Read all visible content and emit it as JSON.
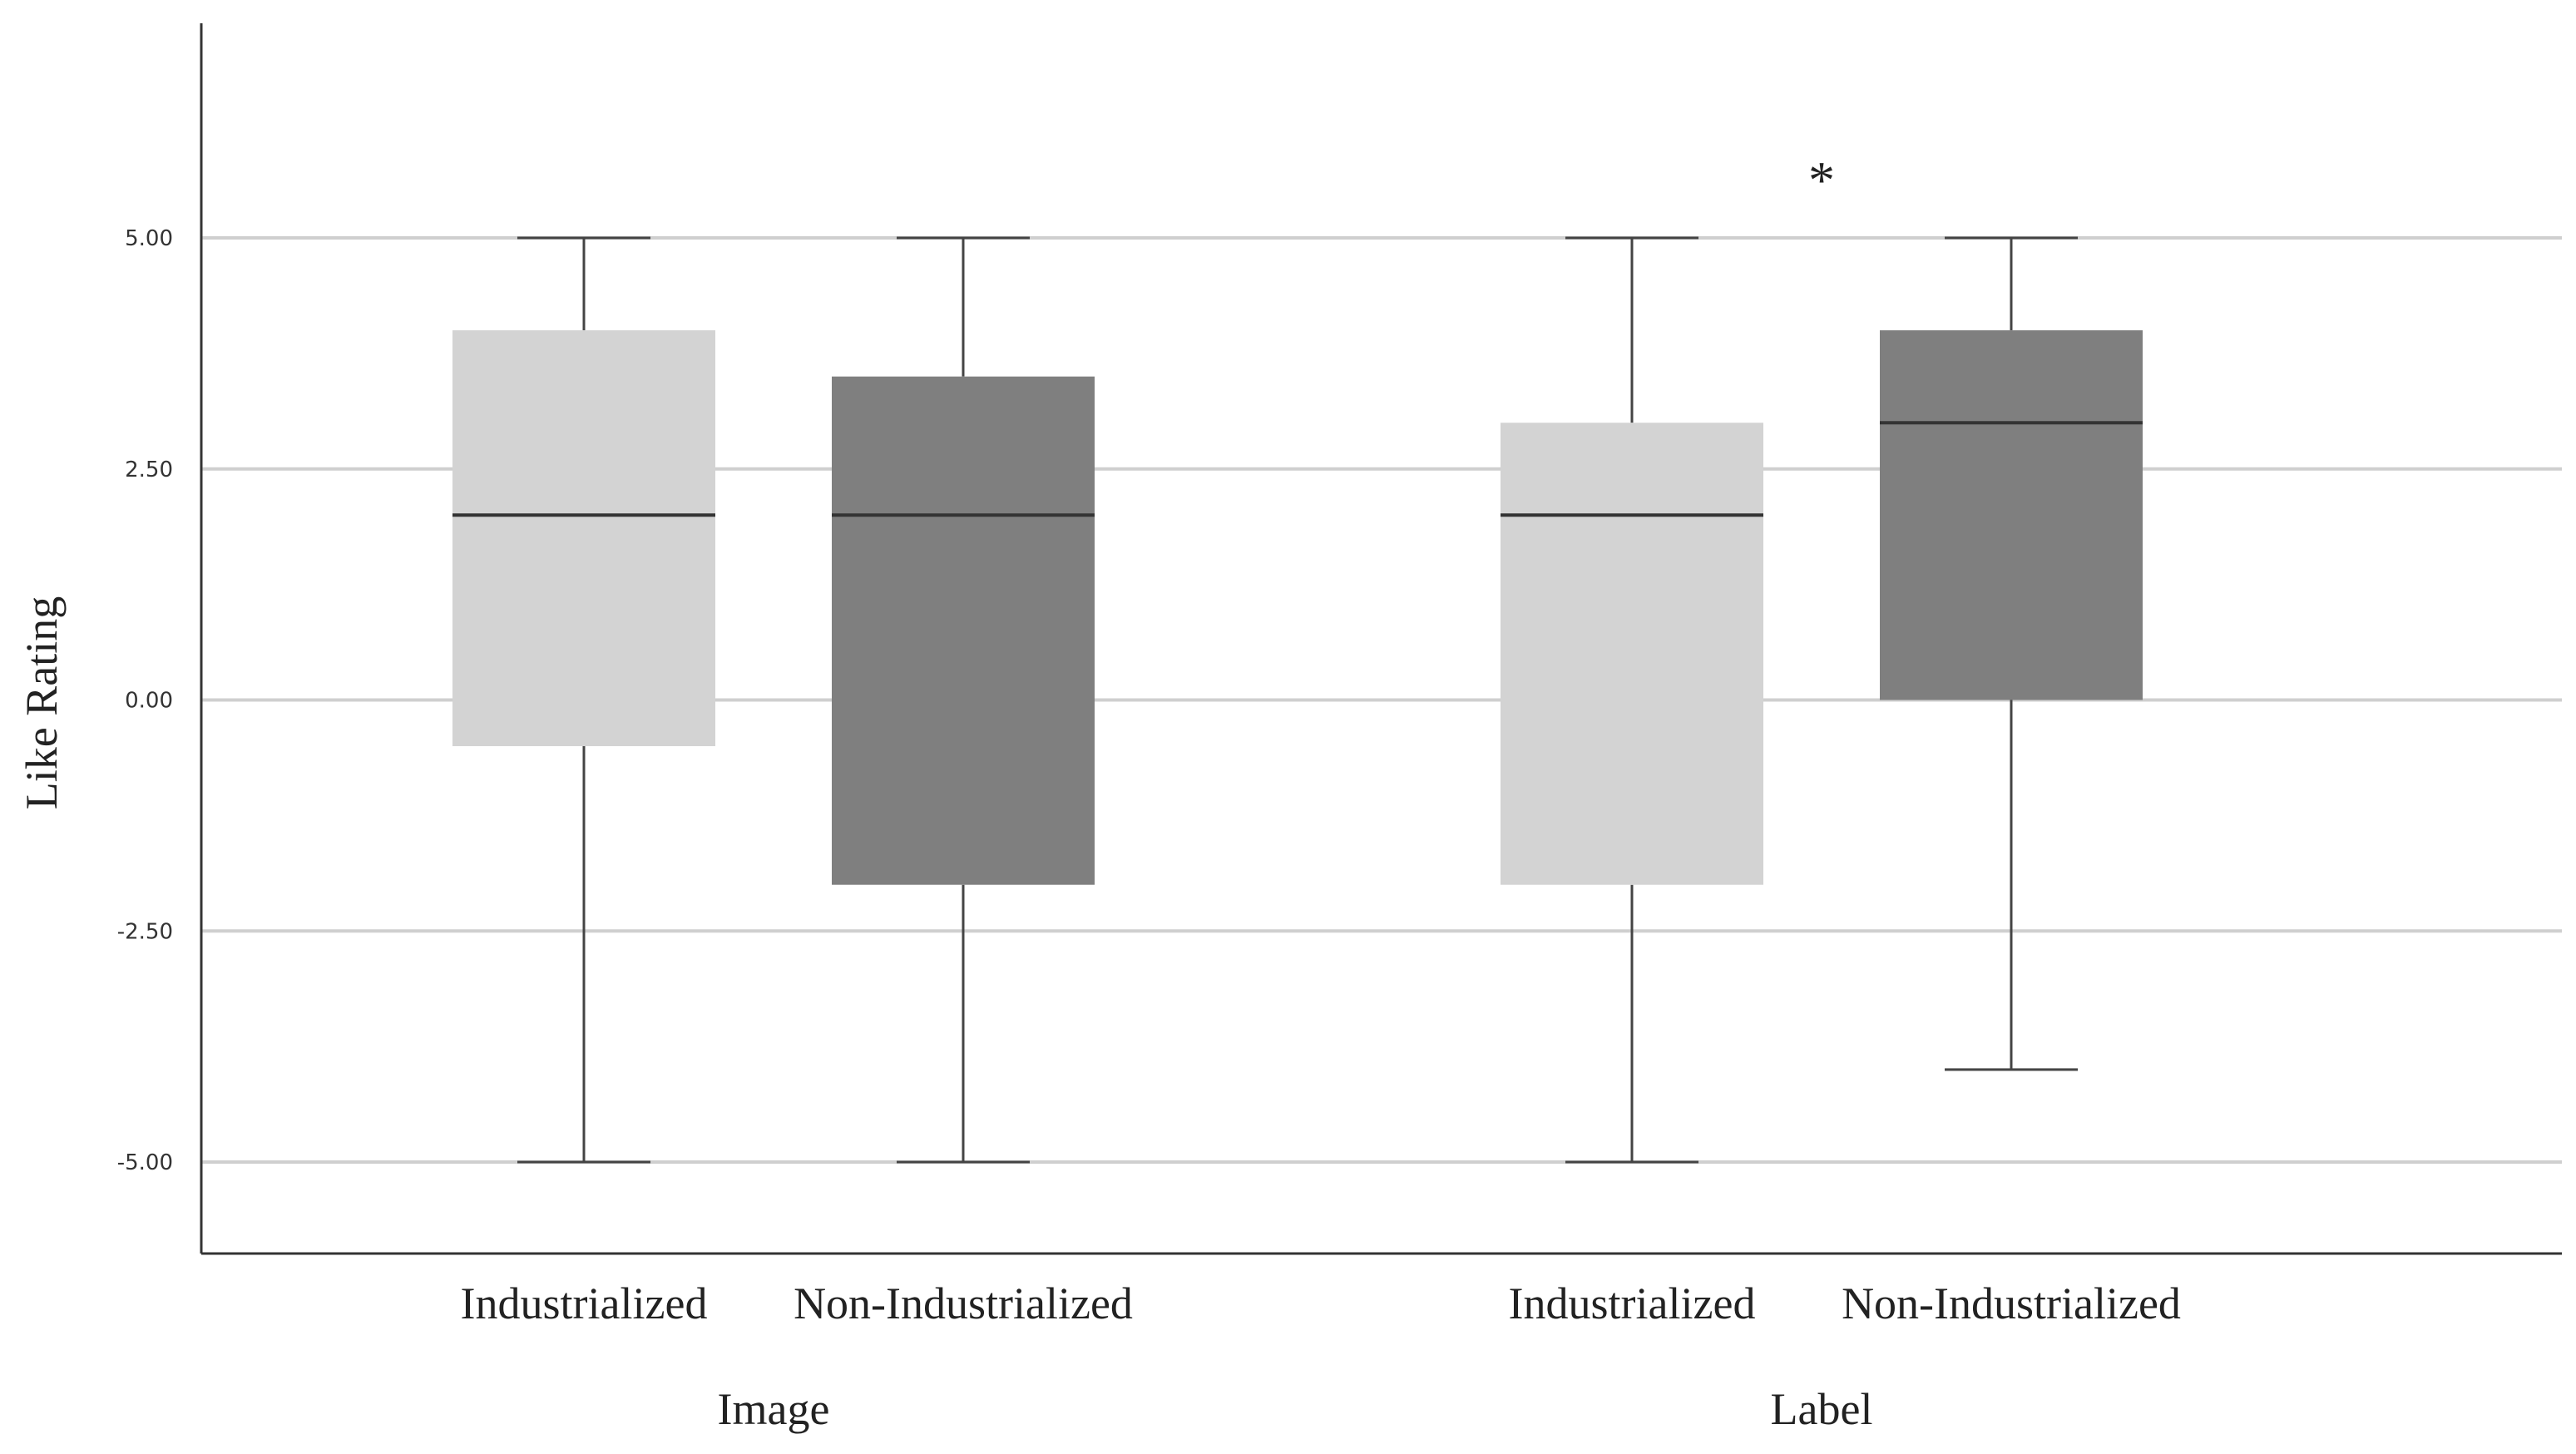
{
  "chart_data": {
    "type": "boxplot",
    "ylabel": "Like Rating",
    "ylim": [
      -6,
      7.3
    ],
    "yticks": [
      5.0,
      2.5,
      0.0,
      -2.5,
      -5.0
    ],
    "ytick_labels": [
      "5.00",
      "2.50",
      "0.00",
      "-2.50",
      "-5.00"
    ],
    "grid": true,
    "groups": [
      {
        "label": "Image",
        "boxes": [
          {
            "category": "Industrialized",
            "min": -5.0,
            "q1": -0.5,
            "median": 2.0,
            "q3": 4.0,
            "max": 5.0,
            "color": "#d3d3d3"
          },
          {
            "category": "Non-Industrialized",
            "min": -5.0,
            "q1": -2.0,
            "median": 2.0,
            "q3": 3.5,
            "max": 5.0,
            "color": "#7f7f7f"
          }
        ]
      },
      {
        "label": "Label",
        "boxes": [
          {
            "category": "Industrialized",
            "min": -5.0,
            "q1": -2.0,
            "median": 2.0,
            "q3": 3.0,
            "max": 5.0,
            "color": "#d3d3d3"
          },
          {
            "category": "Non-Industrialized",
            "min": -4.0,
            "q1": 0.0,
            "median": 3.0,
            "q3": 4.0,
            "max": 5.0,
            "color": "#7f7f7f"
          }
        ]
      }
    ],
    "annotations": [
      {
        "text": "*",
        "group": 1,
        "y": 5.7
      }
    ]
  }
}
